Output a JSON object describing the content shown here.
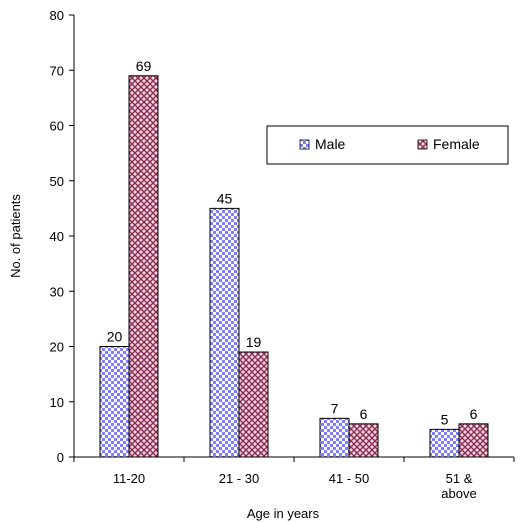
{
  "chart_data": {
    "type": "bar",
    "title": "",
    "xlabel": "Age in years",
    "ylabel": "No. of patients",
    "categories": [
      [
        "11-20"
      ],
      [
        "21 - 30"
      ],
      [
        "41 - 50"
      ],
      [
        "51 &",
        "above"
      ]
    ],
    "series": [
      {
        "name": "Male",
        "values": [
          20,
          45,
          7,
          5
        ],
        "color": "#7f7fff",
        "pattern": "checker"
      },
      {
        "name": "Female",
        "values": [
          69,
          19,
          6,
          6
        ],
        "color": "#8c2d52",
        "pattern": "crosshatch"
      }
    ],
    "ylim": [
      0,
      80
    ],
    "yticks": [
      0,
      10,
      20,
      30,
      40,
      50,
      60,
      70,
      80
    ],
    "grid": false,
    "legend_position": "right"
  }
}
